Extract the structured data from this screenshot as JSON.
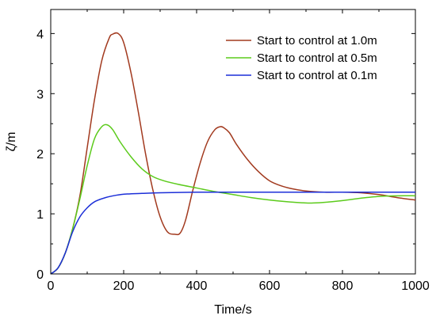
{
  "chart_data": {
    "type": "line",
    "xlabel": "Time/s",
    "ylabel": "ζ/m",
    "xlim": [
      0,
      1000
    ],
    "ylim": [
      0,
      4.4
    ],
    "xticks": [
      0,
      200,
      400,
      600,
      800,
      1000
    ],
    "yticks": [
      0,
      1,
      2,
      3,
      4
    ],
    "grid": false,
    "legend_position": "top-right",
    "series": [
      {
        "name": "Start to control at 1.0m",
        "color": "#a23a1f",
        "x": [
          0,
          20,
          40,
          60,
          80,
          100,
          120,
          140,
          160,
          170,
          185,
          200,
          220,
          240,
          260,
          280,
          300,
          320,
          340,
          355,
          370,
          390,
          410,
          430,
          450,
          465,
          475,
          490,
          510,
          540,
          570,
          600,
          630,
          660,
          700,
          750,
          800,
          850,
          900,
          950,
          1000
        ],
        "y": [
          0,
          0.1,
          0.35,
          0.75,
          1.3,
          2.1,
          2.9,
          3.55,
          3.92,
          3.99,
          4.0,
          3.85,
          3.35,
          2.7,
          2.0,
          1.4,
          0.95,
          0.7,
          0.66,
          0.68,
          0.9,
          1.4,
          1.85,
          2.2,
          2.4,
          2.45,
          2.43,
          2.35,
          2.15,
          1.9,
          1.7,
          1.55,
          1.47,
          1.42,
          1.38,
          1.36,
          1.36,
          1.35,
          1.32,
          1.27,
          1.23
        ]
      },
      {
        "name": "Start to control at 0.5m",
        "color": "#5ccb1c",
        "x": [
          0,
          20,
          40,
          60,
          80,
          100,
          120,
          140,
          155,
          170,
          190,
          220,
          250,
          280,
          310,
          350,
          400,
          450,
          500,
          550,
          600,
          650,
          700,
          720,
          750,
          800,
          850,
          900,
          950,
          1000
        ],
        "y": [
          0,
          0.1,
          0.35,
          0.75,
          1.25,
          1.8,
          2.25,
          2.45,
          2.48,
          2.4,
          2.2,
          1.95,
          1.75,
          1.62,
          1.55,
          1.49,
          1.43,
          1.37,
          1.32,
          1.27,
          1.23,
          1.2,
          1.18,
          1.18,
          1.19,
          1.22,
          1.26,
          1.29,
          1.3,
          1.3
        ]
      },
      {
        "name": "Start to control at 0.1m",
        "color": "#1c2fd8",
        "x": [
          0,
          20,
          40,
          60,
          80,
          100,
          120,
          150,
          180,
          210,
          250,
          300,
          400,
          500,
          600,
          700,
          800,
          900,
          1000
        ],
        "y": [
          0,
          0.1,
          0.35,
          0.7,
          0.95,
          1.1,
          1.2,
          1.27,
          1.31,
          1.33,
          1.34,
          1.35,
          1.36,
          1.36,
          1.36,
          1.36,
          1.36,
          1.36,
          1.36
        ]
      }
    ]
  }
}
